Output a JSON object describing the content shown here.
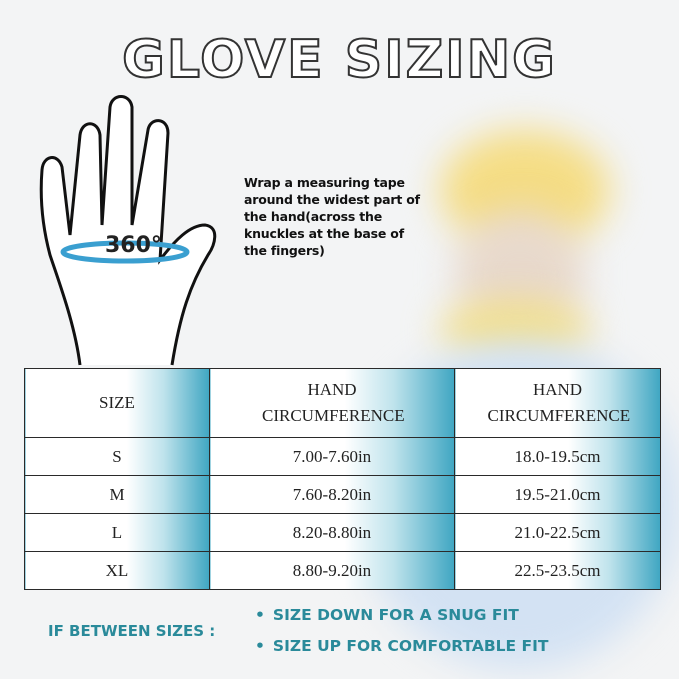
{
  "title": "GLOVE SIZING",
  "hand_label": "360°",
  "instructions": "Wrap a measuring tape around the widest part of the hand(across the knuckles at the base of the fingers)",
  "table": {
    "headers": [
      "SIZE",
      "HAND CIRCUMFERENCE",
      "HAND CIRCUMFERENCE"
    ],
    "rows": [
      [
        "S",
        "7.00-7.60in",
        "18.0-19.5cm"
      ],
      [
        "M",
        "7.60-8.20in",
        "19.5-21.0cm"
      ],
      [
        "L",
        "8.20-8.80in",
        "21.0-22.5cm"
      ],
      [
        "XL",
        "8.80-9.20in",
        "22.5-23.5cm"
      ]
    ]
  },
  "tips": {
    "label": "IF BETWEEN SIZES :",
    "bullet": "•",
    "items": [
      "SIZE DOWN FOR A SNUG FIT",
      "SIZE UP FOR COMFORTABLE FIT"
    ]
  },
  "colors": {
    "accent": "#2a8a9a",
    "tape": "#3a9fd0",
    "helmet": "#f2d35a"
  }
}
